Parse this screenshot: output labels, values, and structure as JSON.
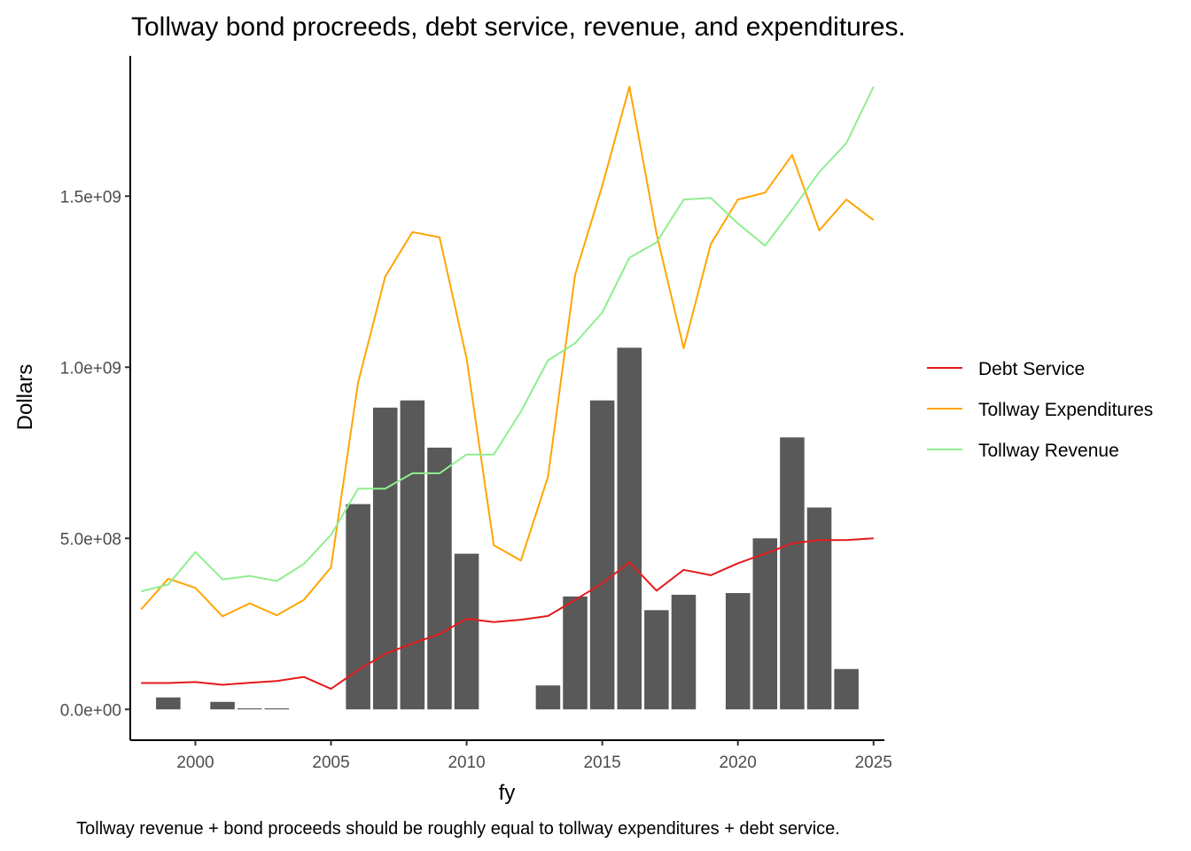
{
  "chart_data": {
    "type": "bar",
    "title": "Tollway bond procreeds, debt service, revenue, and expenditures.",
    "caption": "Tollway revenue + bond proceeds should be roughly equal to tollway expenditures + debt service.",
    "xlabel": "fy",
    "ylabel": "Dollars",
    "xlim": [
      1997.6,
      2025.4
    ],
    "ylim": [
      -90000000,
      1910000000
    ],
    "xticks": [
      2000,
      2005,
      2010,
      2015,
      2020,
      2025
    ],
    "xtick_labels": [
      "2000",
      "2005",
      "2010",
      "2015",
      "2020",
      "2025"
    ],
    "yticks": [
      0,
      500000000,
      1000000000,
      1500000000
    ],
    "ytick_labels": [
      "0.0e+00",
      "5.0e+08",
      "1.0e+09",
      "1.5e+09"
    ],
    "grid": false,
    "legend_position": "right",
    "bars": {
      "x": [
        1999,
        2001,
        2002,
        2003,
        2006,
        2007,
        2008,
        2009,
        2010,
        2013,
        2014,
        2015,
        2016,
        2017,
        2018,
        2020,
        2021,
        2022,
        2023,
        2024
      ],
      "values": [
        35000000,
        22000000,
        3000000,
        3000000,
        600000000,
        882000000,
        903000000,
        765000000,
        455000000,
        70000000,
        330000000,
        903000000,
        1057000000,
        290000000,
        335000000,
        340000000,
        500000000,
        795000000,
        590000000,
        118000000
      ],
      "color": "#595959"
    },
    "x": [
      1998,
      1999,
      2000,
      2001,
      2002,
      2003,
      2004,
      2005,
      2006,
      2007,
      2008,
      2009,
      2010,
      2011,
      2012,
      2013,
      2014,
      2015,
      2016,
      2017,
      2018,
      2019,
      2020,
      2021,
      2022,
      2023,
      2024,
      2025
    ],
    "series": [
      {
        "name": "Debt Service",
        "color": "#e41a1c",
        "values": [
          77000000,
          77000000,
          80000000,
          72000000,
          78000000,
          83000000,
          95000000,
          60000000,
          115000000,
          162000000,
          193000000,
          220000000,
          265000000,
          255000000,
          262000000,
          273000000,
          320000000,
          368000000,
          430000000,
          347000000,
          408000000,
          392000000,
          427000000,
          455000000,
          485000000,
          495000000,
          495000000,
          500000000
        ]
      },
      {
        "name": "Tollway Expenditures",
        "color": "#ffa500",
        "values": [
          292000000,
          382000000,
          355000000,
          272000000,
          310000000,
          275000000,
          320000000,
          415000000,
          955000000,
          1265000000,
          1395000000,
          1380000000,
          1025000000,
          480000000,
          435000000,
          680000000,
          1270000000,
          1530000000,
          1820000000,
          1390000000,
          1055000000,
          1360000000,
          1490000000,
          1510000000,
          1620000000,
          1400000000,
          1490000000,
          1430000000
        ]
      },
      {
        "name": "Tollway Revenue",
        "color": "#90ee90",
        "values": [
          345000000,
          365000000,
          460000000,
          380000000,
          390000000,
          375000000,
          425000000,
          510000000,
          645000000,
          645000000,
          690000000,
          690000000,
          745000000,
          745000000,
          870000000,
          1020000000,
          1070000000,
          1160000000,
          1320000000,
          1365000000,
          1490000000,
          1495000000,
          1420000000,
          1355000000,
          1460000000,
          1570000000,
          1655000000,
          1820000000
        ]
      }
    ]
  }
}
